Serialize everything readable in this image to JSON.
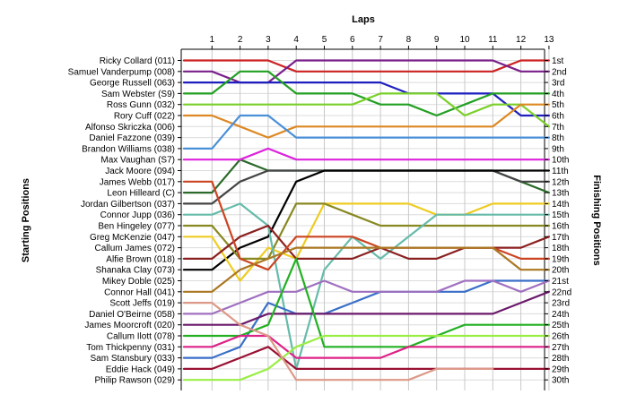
{
  "chart_data": {
    "type": "line",
    "title": "",
    "xlabel": "Laps",
    "ylabel_left": "Starting Positions",
    "ylabel_right": "Finishing Positions",
    "x": [
      1,
      2,
      3,
      4,
      5,
      6,
      7,
      8,
      9,
      10,
      11,
      12,
      13
    ],
    "ylim": [
      1,
      30
    ],
    "grid": true,
    "starting_order": [
      "Ricky Collard (011)",
      "Samuel Vanderpump (008)",
      "George Russell (063)",
      "Sam Webster (S9)",
      "Ross Gunn (032)",
      "Rory Cuff (022)",
      "Alfonso Skriczka (006)",
      "Daniel Fazzone (039)",
      "Brandon Williams (038)",
      "Max Vaughan (S7)",
      "Jack Moore (094)",
      "James Webb (017)",
      "Leon Hilleard (C)",
      "Jordan Gilbertson (037)",
      "Connor Jupp (036)",
      "Ben Hingeley (077)",
      "Greg McKenzie (047)",
      "Callum James (072)",
      "Alfie Brown (018)",
      "Shanaka Clay (073)",
      "Mikey Doble (025)",
      "Connor Hall (041)",
      "Scott Jeffs (019)",
      "Daniel O'Beirne (058)",
      "James Moorcroft (020)",
      "Callum Ilott (078)",
      "Tom Thickpenny (031)",
      "Sam Stansbury (033)",
      "Eddie Hack (049)",
      "Philip Rawson (029)"
    ],
    "finishing_labels": [
      "1st",
      "2nd",
      "3rd",
      "4th",
      "5th",
      "6th",
      "7th",
      "8th",
      "9th",
      "10th",
      "11th",
      "12th",
      "13th",
      "14th",
      "15th",
      "16th",
      "17th",
      "18th",
      "19th",
      "20th",
      "21st",
      "22nd",
      "23rd",
      "24th",
      "25th",
      "26th",
      "27th",
      "28th",
      "29th",
      "30th"
    ],
    "series": [
      {
        "color": "#cc2222",
        "values": [
          1,
          1,
          1,
          2,
          2,
          2,
          2,
          2,
          2,
          2,
          2,
          1,
          1
        ]
      },
      {
        "color": "#7a1f8a",
        "values": [
          2,
          3,
          3,
          1,
          1,
          1,
          1,
          1,
          1,
          1,
          1,
          2,
          2
        ]
      },
      {
        "color": "#1f1fbf",
        "values": [
          3,
          3,
          3,
          3,
          3,
          3,
          3,
          4,
          4,
          4,
          4,
          6,
          6
        ]
      },
      {
        "color": "#22a022",
        "values": [
          4,
          2,
          2,
          4,
          4,
          4,
          5,
          5,
          6,
          5,
          4,
          4,
          4
        ]
      },
      {
        "color": "#7ad02a",
        "values": [
          5,
          5,
          5,
          5,
          5,
          5,
          4,
          4,
          4,
          6,
          5,
          5,
          7
        ]
      },
      {
        "color": "#dd8822",
        "values": [
          6,
          7,
          8,
          7,
          7,
          7,
          7,
          7,
          7,
          7,
          7,
          5,
          5
        ]
      },
      {
        "color": "#4a90d8",
        "values": [
          9,
          6,
          6,
          8,
          8,
          8,
          8,
          8,
          8,
          8,
          8,
          8,
          8
        ]
      },
      {
        "color": "#2a6a2a",
        "values": [
          13,
          10,
          11,
          11,
          11,
          11,
          11,
          11,
          11,
          11,
          11,
          12,
          13
        ]
      },
      {
        "color": "#444444",
        "values": [
          14,
          12,
          11,
          11,
          11,
          11,
          11,
          11,
          11,
          11,
          11,
          12,
          12
        ]
      },
      {
        "color": "#000000",
        "values": [
          20,
          18,
          17,
          12,
          11,
          11,
          11,
          11,
          11,
          11,
          11,
          11,
          11
        ]
      },
      {
        "color": "#dd22dd",
        "values": [
          10,
          10,
          9,
          10,
          10,
          10,
          10,
          10,
          10,
          10,
          10,
          10,
          10
        ]
      },
      {
        "color": "#eecc22",
        "values": [
          17,
          21,
          18,
          19,
          14,
          14,
          14,
          14,
          15,
          15,
          14,
          14,
          14
        ]
      },
      {
        "color": "#888822",
        "values": [
          16,
          19,
          19,
          14,
          14,
          15,
          16,
          16,
          16,
          16,
          16,
          16,
          16
        ]
      },
      {
        "color": "#66bbaa",
        "values": [
          15,
          14,
          16,
          29,
          20,
          17,
          19,
          17,
          15,
          15,
          15,
          15,
          15
        ]
      },
      {
        "color": "#8b2020",
        "values": [
          19,
          17,
          16,
          19,
          19,
          19,
          18,
          19,
          19,
          18,
          18,
          18,
          17
        ]
      },
      {
        "color": "#cc4422",
        "values": [
          12,
          19,
          20,
          17,
          17,
          17,
          18,
          18,
          18,
          18,
          18,
          19,
          19
        ]
      },
      {
        "color": "#aa7722",
        "values": [
          22,
          20,
          19,
          18,
          18,
          18,
          18,
          18,
          18,
          18,
          18,
          20,
          20
        ]
      },
      {
        "color": "#3a6fc8",
        "values": [
          28,
          27,
          23,
          24,
          24,
          23,
          22,
          22,
          22,
          22,
          21,
          21,
          21
        ]
      },
      {
        "color": "#6b1a6b",
        "values": [
          25,
          25,
          24,
          24,
          24,
          24,
          24,
          24,
          24,
          24,
          24,
          23,
          22
        ]
      },
      {
        "color": "#a070c0",
        "values": [
          24,
          23,
          22,
          22,
          21,
          22,
          22,
          22,
          22,
          21,
          21,
          22,
          21
        ]
      },
      {
        "color": "#22b022",
        "values": [
          26,
          26,
          25,
          19,
          27,
          27,
          27,
          27,
          26,
          25,
          25,
          25,
          25
        ]
      },
      {
        "color": "#dd2288",
        "values": [
          27,
          26,
          26,
          28,
          28,
          28,
          28,
          27,
          27,
          27,
          27,
          27,
          27
        ]
      },
      {
        "color": "#99ee44",
        "values": [
          30,
          30,
          29,
          27,
          26,
          26,
          26,
          26,
          26,
          26,
          26,
          26,
          26
        ]
      },
      {
        "color": "#991133",
        "values": [
          29,
          28,
          27,
          29,
          29,
          29,
          29,
          29,
          29,
          29,
          29,
          29,
          29
        ]
      },
      {
        "color": "#dd9988",
        "values": [
          23,
          25,
          26,
          30,
          30,
          30,
          30,
          30,
          29,
          29,
          29,
          null,
          null
        ]
      }
    ]
  }
}
